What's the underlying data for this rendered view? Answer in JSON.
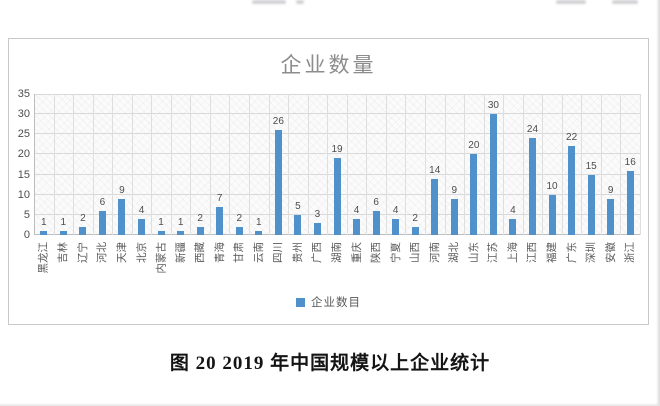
{
  "figure": {
    "caption": "图 20 2019 年中国规模以上企业统计"
  },
  "chart_data": {
    "type": "bar",
    "title": "企业数量",
    "categories": [
      "黑龙江",
      "吉林",
      "辽宁",
      "河北",
      "天津",
      "北京",
      "内蒙古",
      "新疆",
      "西藏",
      "青海",
      "甘肃",
      "云南",
      "四川",
      "贵州",
      "广西",
      "湖南",
      "重庆",
      "陕西",
      "宁夏",
      "山西",
      "河南",
      "湖北",
      "山东",
      "江苏",
      "上海",
      "江西",
      "福建",
      "广东",
      "深圳",
      "安徽",
      "浙江"
    ],
    "values": [
      1,
      1,
      2,
      6,
      9,
      4,
      1,
      1,
      2,
      7,
      2,
      1,
      26,
      5,
      3,
      19,
      4,
      6,
      4,
      2,
      14,
      9,
      20,
      30,
      4,
      24,
      10,
      22,
      15,
      9,
      16
    ],
    "series_name": "企业数目",
    "legend": [
      "企业数目"
    ],
    "legend_position": "bottom",
    "xlabel": "",
    "ylabel": "",
    "ylim": [
      0,
      35
    ],
    "yticks": [
      0,
      5,
      10,
      15,
      20,
      25,
      30,
      35
    ],
    "grid": true,
    "data_labels": true,
    "bar_color": "#5191cb"
  }
}
